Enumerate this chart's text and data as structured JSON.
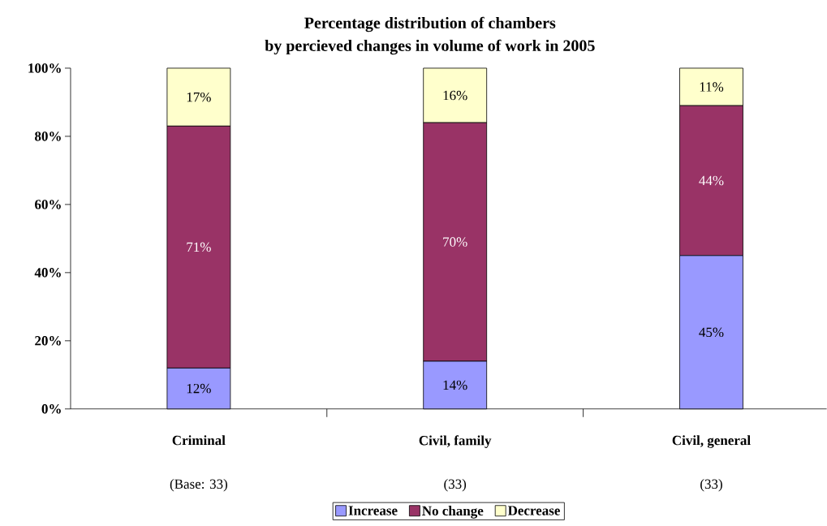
{
  "chart_data": {
    "type": "bar",
    "stacked": true,
    "title": "Percentage distribution of chambers",
    "subtitle": "by percieved changes in volume of work in 2005",
    "categories": [
      "Criminal",
      "Civil, family",
      "Civil, general"
    ],
    "series": [
      {
        "name": "Increase",
        "color": "#9999ff",
        "values": [
          12,
          14,
          45
        ],
        "value_labels": [
          "12%",
          "14%",
          "45%"
        ]
      },
      {
        "name": "No change",
        "color": "#993366",
        "values": [
          71,
          70,
          44
        ],
        "value_labels": [
          "71%",
          "70%",
          "44%"
        ]
      },
      {
        "name": "Decrease",
        "color": "#ffffcc",
        "values": [
          17,
          16,
          11
        ],
        "value_labels": [
          "17%",
          "16%",
          "11%"
        ]
      }
    ],
    "ylim": [
      0,
      100
    ],
    "yticks": [
      {
        "value": 0,
        "label": "0%"
      },
      {
        "value": 20,
        "label": "20%"
      },
      {
        "value": 40,
        "label": "40%"
      },
      {
        "value": 60,
        "label": "60%"
      },
      {
        "value": 80,
        "label": "80%"
      },
      {
        "value": 100,
        "label": "100%"
      }
    ],
    "annotations": [
      "(Base: 33)",
      "(33)",
      "(33)"
    ],
    "grid": false,
    "legend": "bottom"
  }
}
